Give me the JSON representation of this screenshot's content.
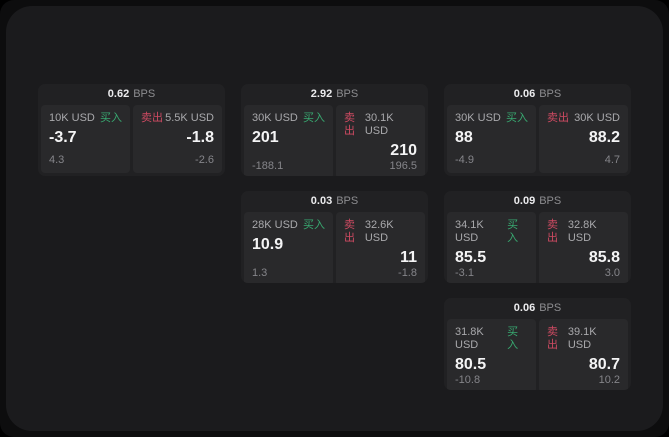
{
  "labels": {
    "buy": "买入",
    "sell": "卖出",
    "bps_suffix": "BPS"
  },
  "colors": {
    "page_bg": "#0d0d0e",
    "panel_bg": "#1b1b1d",
    "card_bg": "#212123",
    "subpanel_bg": "#29292b",
    "buy_green": "#38a870",
    "sell_red": "#ce4a62",
    "value_text": "#f4f4f5",
    "muted_text": "#a9a9ac",
    "faint_text": "#85858a"
  },
  "cards": [
    {
      "bps": "0.62",
      "grid": {
        "row": 1,
        "col": 1
      },
      "buy": {
        "size": "10K USD",
        "value": "-3.7",
        "delta": "4.3"
      },
      "sell": {
        "size": "5.5K USD",
        "value": "-1.8",
        "delta": "-2.6"
      }
    },
    {
      "bps": "2.92",
      "grid": {
        "row": 1,
        "col": 2
      },
      "buy": {
        "size": "30K USD",
        "value": "201",
        "delta": "-188.1"
      },
      "sell": {
        "size": "30.1K USD",
        "value": "210",
        "delta": "196.5"
      }
    },
    {
      "bps": "0.06",
      "grid": {
        "row": 1,
        "col": 3
      },
      "buy": {
        "size": "30K USD",
        "value": "88",
        "delta": "-4.9"
      },
      "sell": {
        "size": "30K USD",
        "value": "88.2",
        "delta": "4.7"
      }
    },
    {
      "bps": "0.03",
      "grid": {
        "row": 2,
        "col": 2
      },
      "buy": {
        "size": "28K USD",
        "value": "10.9",
        "delta": "1.3"
      },
      "sell": {
        "size": "32.6K USD",
        "value": "11",
        "delta": "-1.8"
      }
    },
    {
      "bps": "0.09",
      "grid": {
        "row": 2,
        "col": 3
      },
      "buy": {
        "size": "34.1K USD",
        "value": "85.5",
        "delta": "-3.1"
      },
      "sell": {
        "size": "32.8K USD",
        "value": "85.8",
        "delta": "3.0"
      }
    },
    {
      "bps": "0.06",
      "grid": {
        "row": 3,
        "col": 3
      },
      "buy": {
        "size": "31.8K USD",
        "value": "80.5",
        "delta": "-10.8"
      },
      "sell": {
        "size": "39.1K USD",
        "value": "80.7",
        "delta": "10.2"
      }
    }
  ]
}
